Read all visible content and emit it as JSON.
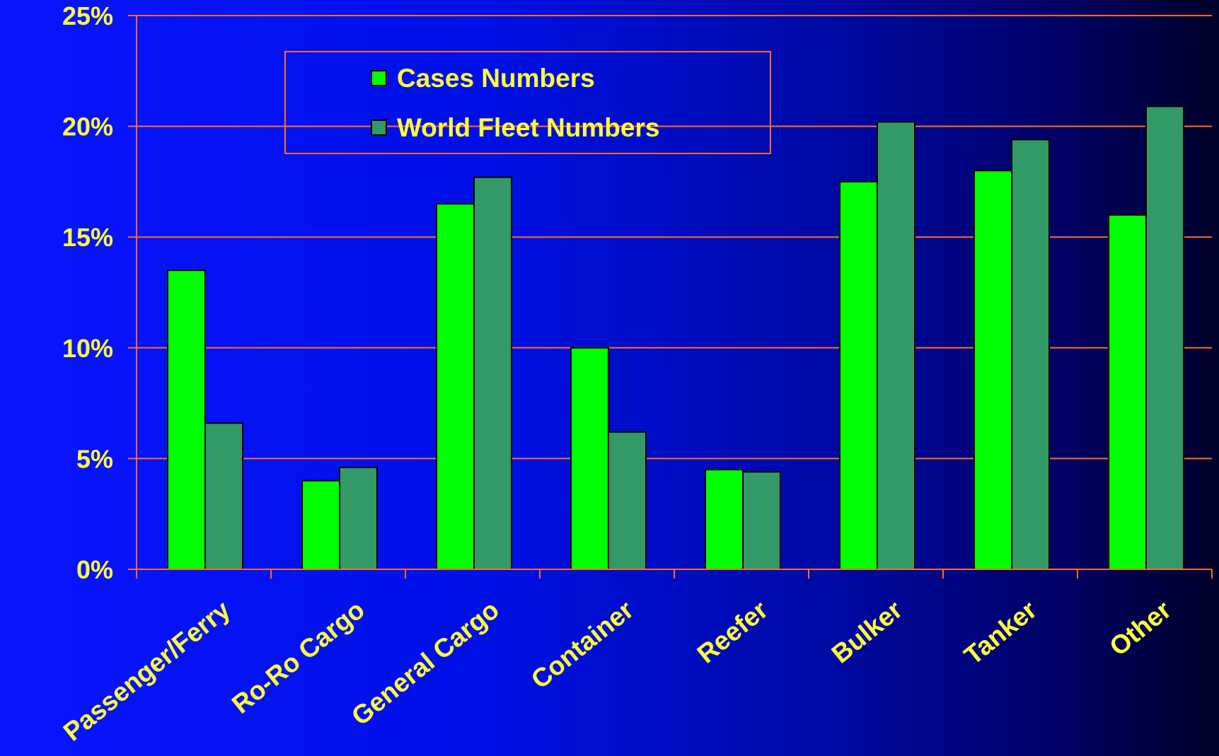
{
  "chart_data": {
    "type": "bar",
    "categories": [
      "Passenger/Ferry",
      "Ro-Ro Cargo",
      "General Cargo",
      "Container",
      "Reefer",
      "Bulker",
      "Tanker",
      "Other"
    ],
    "series": [
      {
        "name": "Cases Numbers",
        "values": [
          13.5,
          4.0,
          16.5,
          10.0,
          4.5,
          17.5,
          18.0,
          16.0
        ],
        "color": "#00ff00"
      },
      {
        "name": "World Fleet Numbers",
        "values": [
          6.6,
          4.6,
          17.7,
          6.2,
          4.4,
          20.2,
          19.4,
          20.9
        ],
        "color": "#339966"
      }
    ],
    "ylim": [
      0,
      25
    ],
    "yticks": [
      0,
      5,
      10,
      15,
      20,
      25
    ],
    "ytick_labels": [
      "0%",
      "5%",
      "10%",
      "15%",
      "20%",
      "25%"
    ],
    "grid": true,
    "legend_position": "top-center",
    "colors": {
      "text": "#ffff3c",
      "axis": "#ff6a2a",
      "bar_outline": "#000000"
    }
  }
}
